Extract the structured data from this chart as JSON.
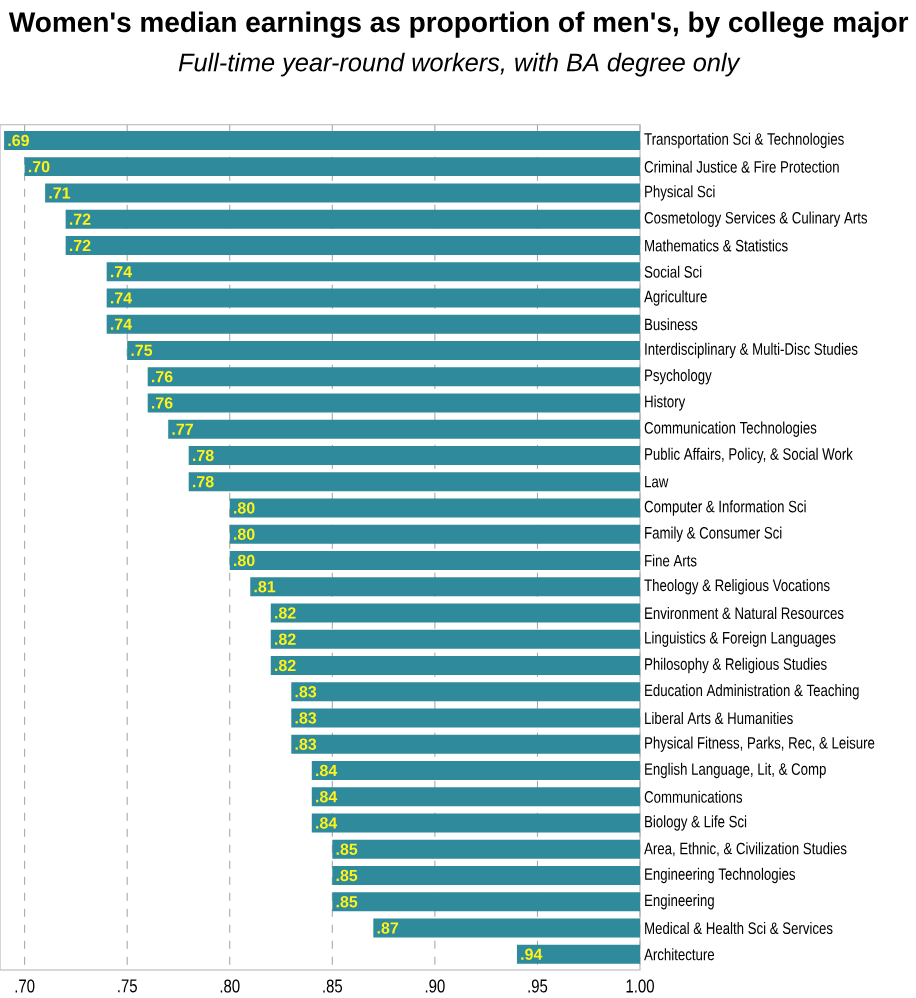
{
  "chart_data": {
    "type": "bar",
    "orientation": "horizontal",
    "title": "Women's median earnings as proportion of men's, by college major",
    "subtitle": "Full-time year-round workers, with BA degree only",
    "categories": [
      "Transportation Sci & Technologies",
      "Criminal Justice & Fire Protection",
      "Physical Sci",
      "Cosmetology Services & Culinary Arts",
      "Mathematics & Statistics",
      "Social Sci",
      "Agriculture",
      "Business",
      "Interdisciplinary & Multi-Disc Studies",
      "Psychology",
      "History",
      "Communication Technologies",
      "Public Affairs, Policy, & Social Work",
      "Law",
      "Computer & Information Sci",
      "Family & Consumer Sci",
      "Fine Arts",
      "Theology & Religious Vocations",
      "Environment & Natural Resources",
      "Linguistics & Foreign Languages",
      "Philosophy & Religious Studies",
      "Education Administration & Teaching",
      "Liberal Arts & Humanities",
      "Physical Fitness, Parks, Rec, & Leisure",
      "English Language, Lit, & Comp",
      "Communications",
      "Biology & Life Sci",
      "Area, Ethnic, & Civilization Studies",
      "Engineering Technologies",
      "Engineering",
      "Medical & Health Sci & Services",
      "Architecture"
    ],
    "base": [
      0.69,
      0.7,
      0.71,
      0.72,
      0.72,
      0.74,
      0.74,
      0.74,
      0.75,
      0.76,
      0.76,
      0.77,
      0.78,
      0.78,
      0.8,
      0.8,
      0.8,
      0.81,
      0.82,
      0.82,
      0.82,
      0.83,
      0.83,
      0.83,
      0.84,
      0.84,
      0.84,
      0.85,
      0.85,
      0.85,
      0.87,
      0.94
    ],
    "values": [
      0.31,
      0.3,
      0.29,
      0.28,
      0.28,
      0.26,
      0.26,
      0.26,
      0.25,
      0.24,
      0.24,
      0.23,
      0.22,
      0.22,
      0.2,
      0.2,
      0.2,
      0.19,
      0.18,
      0.18,
      0.18,
      0.17,
      0.17,
      0.17,
      0.16,
      0.16,
      0.16,
      0.15,
      0.15,
      0.15,
      0.13,
      0.06
    ],
    "annotations": [
      {
        "text": ".69",
        "x": 0.69,
        "y": "Transportation Sci & Technologies"
      },
      {
        "text": ".70",
        "x": 0.7,
        "y": "Criminal Justice & Fire Protection"
      },
      {
        "text": ".71",
        "x": 0.71,
        "y": "Physical Sci"
      },
      {
        "text": ".72",
        "x": 0.72,
        "y": "Cosmetology Services & Culinary Arts"
      },
      {
        "text": ".72",
        "x": 0.72,
        "y": "Mathematics & Statistics"
      },
      {
        "text": ".74",
        "x": 0.74,
        "y": "Social Sci"
      },
      {
        "text": ".74",
        "x": 0.74,
        "y": "Agriculture"
      },
      {
        "text": ".74",
        "x": 0.74,
        "y": "Business"
      },
      {
        "text": ".75",
        "x": 0.75,
        "y": "Interdisciplinary & Multi-Disc Studies"
      },
      {
        "text": ".76",
        "x": 0.76,
        "y": "Psychology"
      },
      {
        "text": ".76",
        "x": 0.76,
        "y": "History"
      },
      {
        "text": ".77",
        "x": 0.77,
        "y": "Communication Technologies"
      },
      {
        "text": ".78",
        "x": 0.78,
        "y": "Public Affairs, Policy, & Social Work"
      },
      {
        "text": ".78",
        "x": 0.78,
        "y": "Law"
      },
      {
        "text": ".80",
        "x": 0.8,
        "y": "Computer & Information Sci"
      },
      {
        "text": ".80",
        "x": 0.8,
        "y": "Family & Consumer Sci"
      },
      {
        "text": ".80",
        "x": 0.8,
        "y": "Fine Arts"
      },
      {
        "text": ".81",
        "x": 0.81,
        "y": "Theology & Religious Vocations"
      },
      {
        "text": ".82",
        "x": 0.82,
        "y": "Environment & Natural Resources"
      },
      {
        "text": ".82",
        "x": 0.82,
        "y": "Linguistics & Foreign Languages"
      },
      {
        "text": ".82",
        "x": 0.82,
        "y": "Philosophy & Religious Studies"
      },
      {
        "text": ".83",
        "x": 0.83,
        "y": "Education Administration & Teaching"
      },
      {
        "text": ".83",
        "x": 0.83,
        "y": "Liberal Arts & Humanities"
      },
      {
        "text": ".83",
        "x": 0.83,
        "y": "Physical Fitness, Parks, Rec, & Leisure"
      },
      {
        "text": ".84",
        "x": 0.84,
        "y": "English Language, Lit, & Comp"
      },
      {
        "text": ".84",
        "x": 0.84,
        "y": "Communications"
      },
      {
        "text": ".84",
        "x": 0.84,
        "y": "Biology & Life Sci"
      },
      {
        "text": ".85",
        "x": 0.85,
        "y": "Area, Ethnic, & Civilization Studies"
      },
      {
        "text": ".85",
        "x": 0.85,
        "y": "Engineering Technologies"
      },
      {
        "text": ".85",
        "x": 0.85,
        "y": "Engineering"
      },
      {
        "text": ".87",
        "x": 0.87,
        "y": "Medical & Health Sci & Services"
      },
      {
        "text": ".94",
        "x": 0.94,
        "y": "Architecture"
      }
    ],
    "color": "#2f8a9c",
    "xlim": [
      0.688,
      1.0
    ],
    "xticks": [
      {
        "value": 0.7,
        "label": ".70"
      },
      {
        "value": 0.75,
        "label": ".75"
      },
      {
        "value": 0.8,
        "label": ".80"
      },
      {
        "value": 0.85,
        "label": ".85"
      },
      {
        "value": 0.9,
        "label": ".90"
      },
      {
        "value": 0.95,
        "label": ".95"
      },
      {
        "value": 1.0,
        "label": "1.00"
      }
    ],
    "grid": "x"
  }
}
